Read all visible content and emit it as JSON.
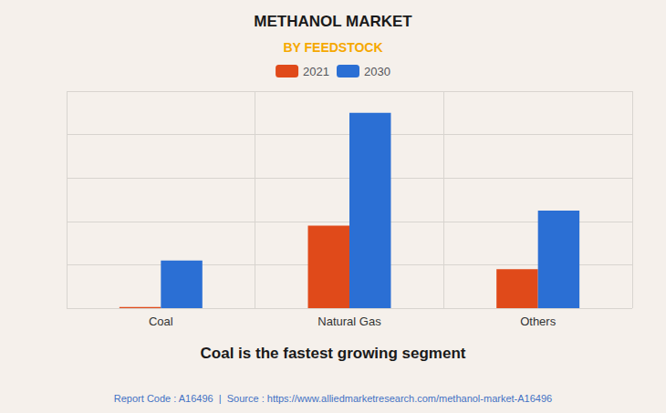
{
  "chart_data": {
    "type": "bar",
    "title": "METHANOL MARKET",
    "subtitle": "BY FEEDSTOCK",
    "categories": [
      "Coal",
      "Natural Gas",
      "Others"
    ],
    "series": [
      {
        "name": "2021",
        "color": "#e04a1a",
        "values": [
          0.5,
          38,
          18
        ]
      },
      {
        "name": "2030",
        "color": "#2b6fd4",
        "values": [
          22,
          90,
          45
        ]
      }
    ],
    "ylim": [
      0,
      100
    ],
    "yticks": [
      0,
      20,
      40,
      60,
      80,
      100
    ],
    "grid": true,
    "legend": "top",
    "tick_labels": "x",
    "annotations": [
      "Coal is the fastest growing segment",
      "Report Code : A16496  |  Source : https://www.alliedmarketresearch.com/methanol-market-A16496"
    ]
  }
}
